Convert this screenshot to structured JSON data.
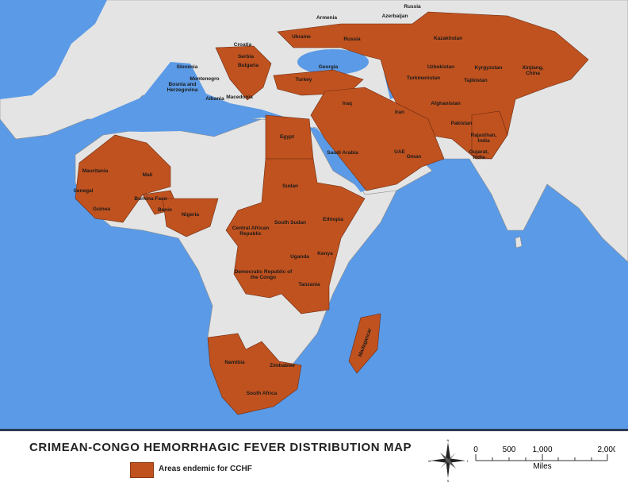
{
  "title": "CRIMEAN-CONGO HEMORRHAGIC FEVER DISTRIBUTION MAP",
  "legend": {
    "label": "Areas endemic for CCHF",
    "color": "#c0521f"
  },
  "colors": {
    "ocean": "#5b9ae6",
    "land": "#e4e4e4",
    "endemic": "#c0521f",
    "border": "#7a7a7a"
  },
  "compass": {
    "n": "N",
    "s": "S",
    "e": "E",
    "w": "W"
  },
  "scale": {
    "ticks": [
      "0",
      "500",
      "1,000",
      "2,000"
    ],
    "unit": "Miles"
  },
  "country_labels": [
    "Russia",
    "Armenia",
    "Azerbaijan",
    "Ukraine",
    "Russia",
    "Kazakhstan",
    "Croatia",
    "Slovenia",
    "Serbia",
    "Bulgaria",
    "Georgia",
    "Bosnia and Herzegovina",
    "Montenegro",
    "Albania",
    "Macedonia",
    "Turkey",
    "Uzbekistan",
    "Kyrgyzstan",
    "Turkmenistan",
    "Tajikistan",
    "Xinjiang, China",
    "Iraq",
    "Iran",
    "Afghanistan",
    "Pakistan",
    "Rajasthan, India",
    "Gujarat, India",
    "Egypt",
    "Saudi Arabia",
    "UAE",
    "Oman",
    "Mauritania",
    "Mali",
    "Senegal",
    "Guinea",
    "Burkina Faso",
    "Benin",
    "Nigeria",
    "Sudan",
    "South Sudan",
    "Ethiopia",
    "Central African Republic",
    "Uganda",
    "Kenya",
    "Democratic Republic of the Congo",
    "Tanzania",
    "Madagascar",
    "Zimbabwe",
    "Namibia",
    "South Africa"
  ]
}
